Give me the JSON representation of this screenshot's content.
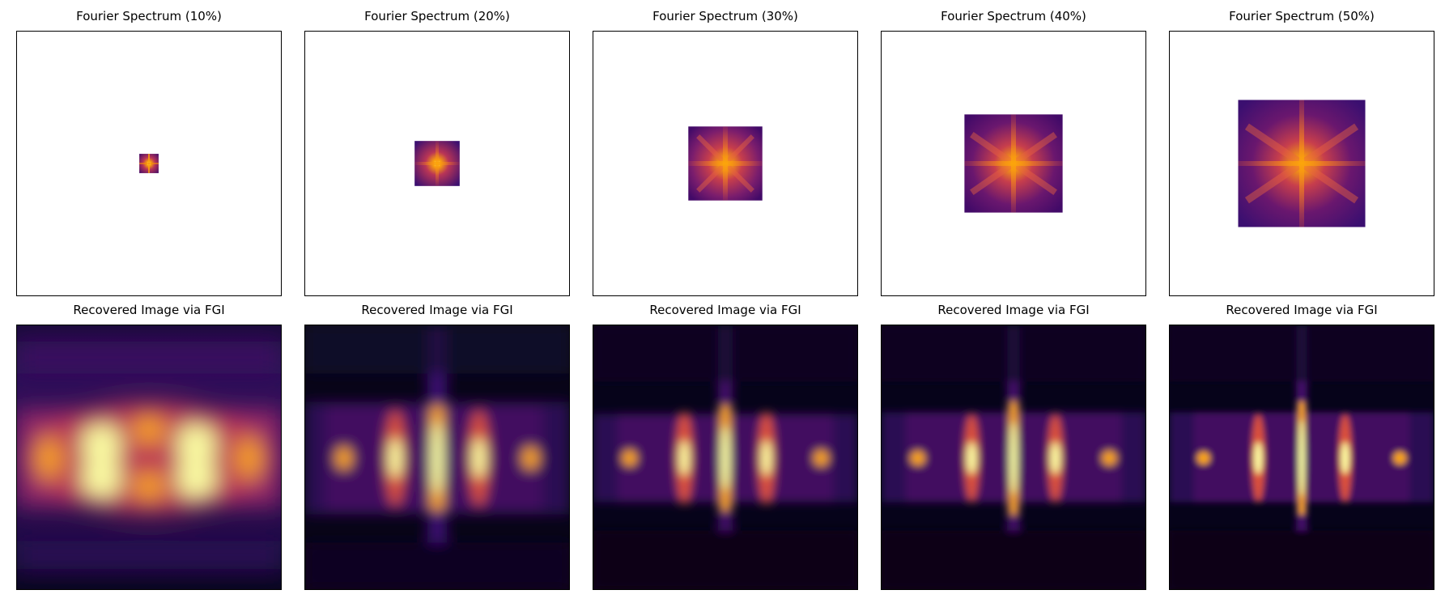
{
  "figure": {
    "spectrum_titles": [
      "Fourier Spectrum (10%)",
      "Fourier Spectrum (20%)",
      "Fourier Spectrum (30%)",
      "Fourier Spectrum (40%)",
      "Fourier Spectrum (50%)"
    ],
    "spectrum_fractions": [
      0.1,
      0.2,
      0.3,
      0.4,
      0.5
    ],
    "recovered_title": "Recovered Image via FGI",
    "colormap": [
      "#000004",
      "#420a68",
      "#932667",
      "#dd513a",
      "#fca50a",
      "#fcffa4"
    ]
  }
}
